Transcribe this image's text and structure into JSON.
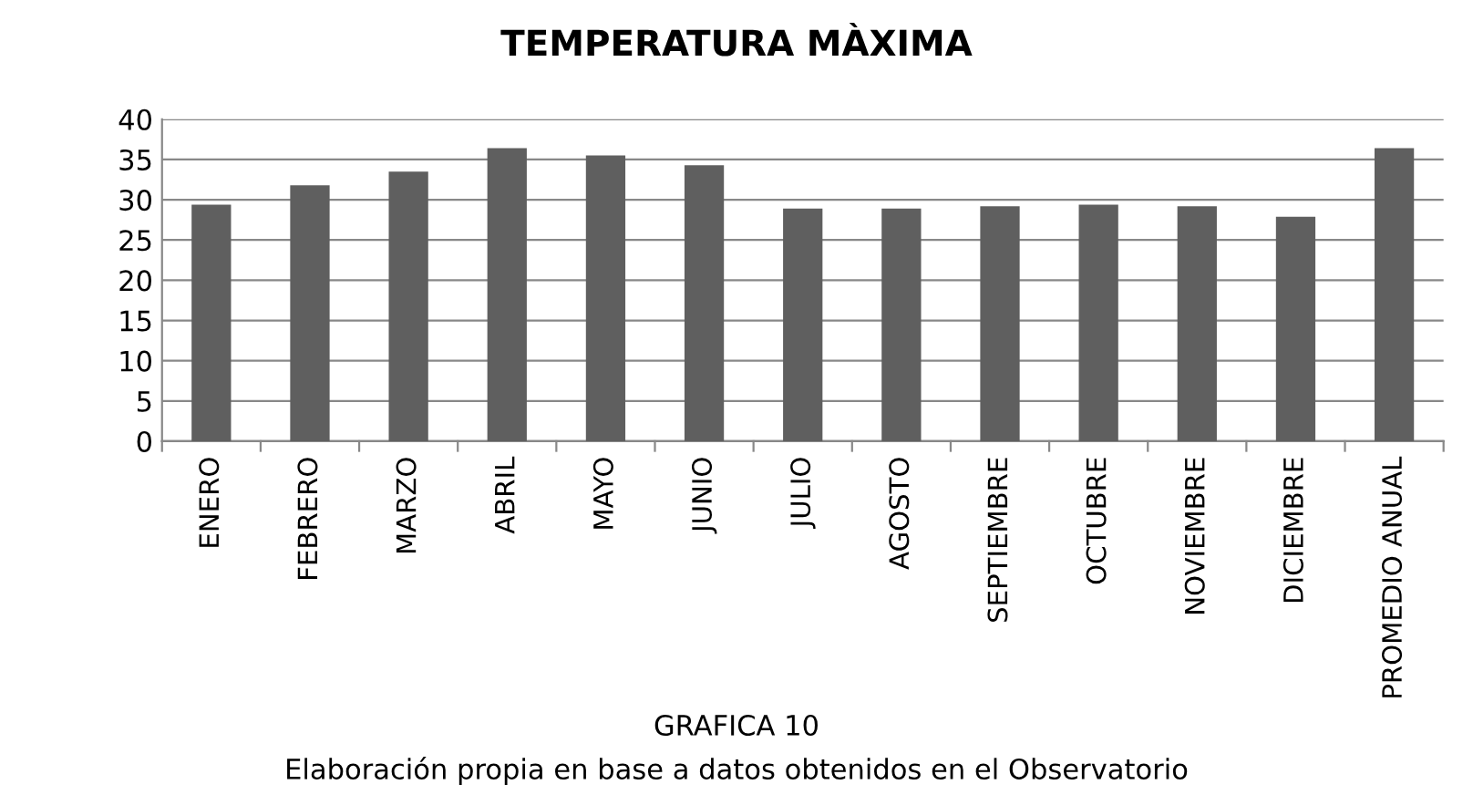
{
  "chart_data": {
    "type": "bar",
    "title": "TEMPERATURA MÀXIMA",
    "categories": [
      "ENERO",
      "FEBRERO",
      "MARZO",
      "ABRIL",
      "MAYO",
      "JUNIO",
      "JULIO",
      "AGOSTO",
      "SEPTIEMBRE",
      "OCTUBRE",
      "NOVIEMBRE",
      "DICIEMBRE",
      "PROMEDIO ANUAL"
    ],
    "values": [
      29.4,
      31.8,
      33.5,
      36.4,
      35.5,
      34.3,
      28.9,
      28.9,
      29.2,
      29.4,
      29.2,
      27.9,
      36.4
    ],
    "color": "#5f5f5f",
    "ylim": [
      0,
      40
    ],
    "yticks": [
      0,
      5,
      10,
      15,
      20,
      25,
      30,
      35,
      40
    ],
    "grid": "y",
    "annotations": [
      "GRAFICA 10",
      "Elaboración propia en base a datos obtenidos en el Observatorio"
    ]
  }
}
